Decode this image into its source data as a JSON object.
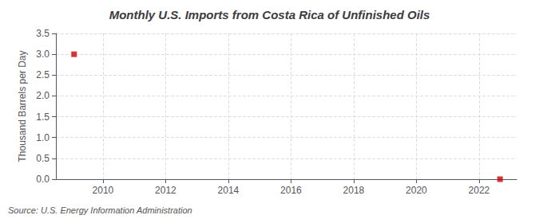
{
  "chart_data": {
    "type": "scatter",
    "title": "Monthly U.S. Imports from Costa Rica of Unfinished Oils",
    "ylabel": "Thousand Barrels per Day",
    "annotations": [
      "Source: U.S. Energy Information Administration"
    ],
    "x": [
      2009.08,
      2022.67
    ],
    "values": [
      3.0,
      0.0
    ],
    "color": "#cc0000",
    "marker": "square",
    "xlim": [
      2008.5,
      2023.2
    ],
    "xticks": [
      2010,
      2012,
      2014,
      2016,
      2018,
      2020,
      2022
    ],
    "ylim": [
      0.0,
      3.5
    ],
    "yticks": [
      {
        "value": 0.0,
        "label": "0.0"
      },
      0.5,
      {
        "value": 1.0,
        "label": "1.0"
      },
      1.5,
      {
        "value": 2.0,
        "label": "2.0"
      },
      2.5,
      {
        "value": 3.0,
        "label": "3.0"
      },
      3.5
    ],
    "grid": true
  }
}
